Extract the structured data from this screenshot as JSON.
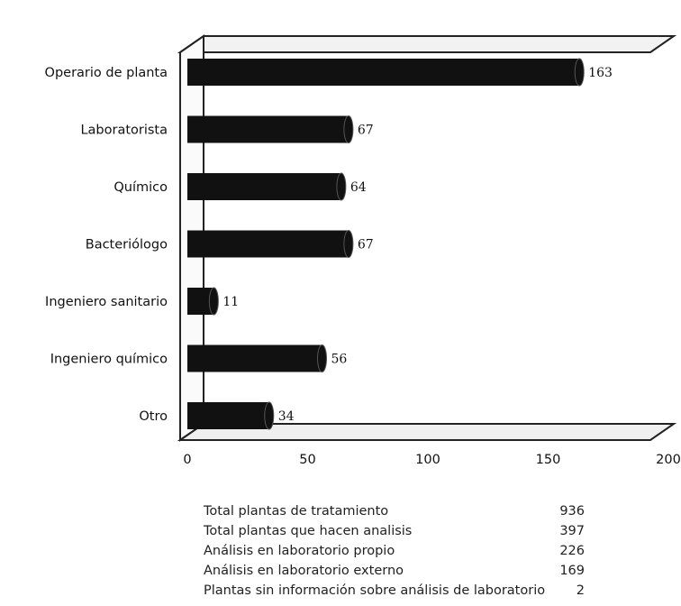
{
  "chart_data": {
    "type": "bar",
    "orientation": "horizontal",
    "categories": [
      "Operario de planta",
      "Laboratorista",
      "Químico",
      "Bacteriólogo",
      "Ingeniero sanitario",
      "Ingeniero químico",
      "Otro"
    ],
    "values": [
      163,
      67,
      64,
      67,
      11,
      56,
      34
    ],
    "xlim": [
      0,
      200
    ],
    "x_ticks": [
      "0",
      "50",
      "100",
      "150",
      "200"
    ],
    "title": "",
    "xlabel": "",
    "ylabel": "",
    "grid": false,
    "bar_color": "#111111",
    "outline_color": "#555555"
  },
  "summary": [
    {
      "label": "Total plantas de tratamiento",
      "value": "936"
    },
    {
      "label": "Total plantas que hacen analisis",
      "value": "397"
    },
    {
      "label": "Análisis en laboratorio propio",
      "value": "226"
    },
    {
      "label": "Análisis en laboratorio externo",
      "value": "169"
    },
    {
      "label": "Plantas sin información sobre análisis de laboratorio",
      "value": "2"
    }
  ]
}
